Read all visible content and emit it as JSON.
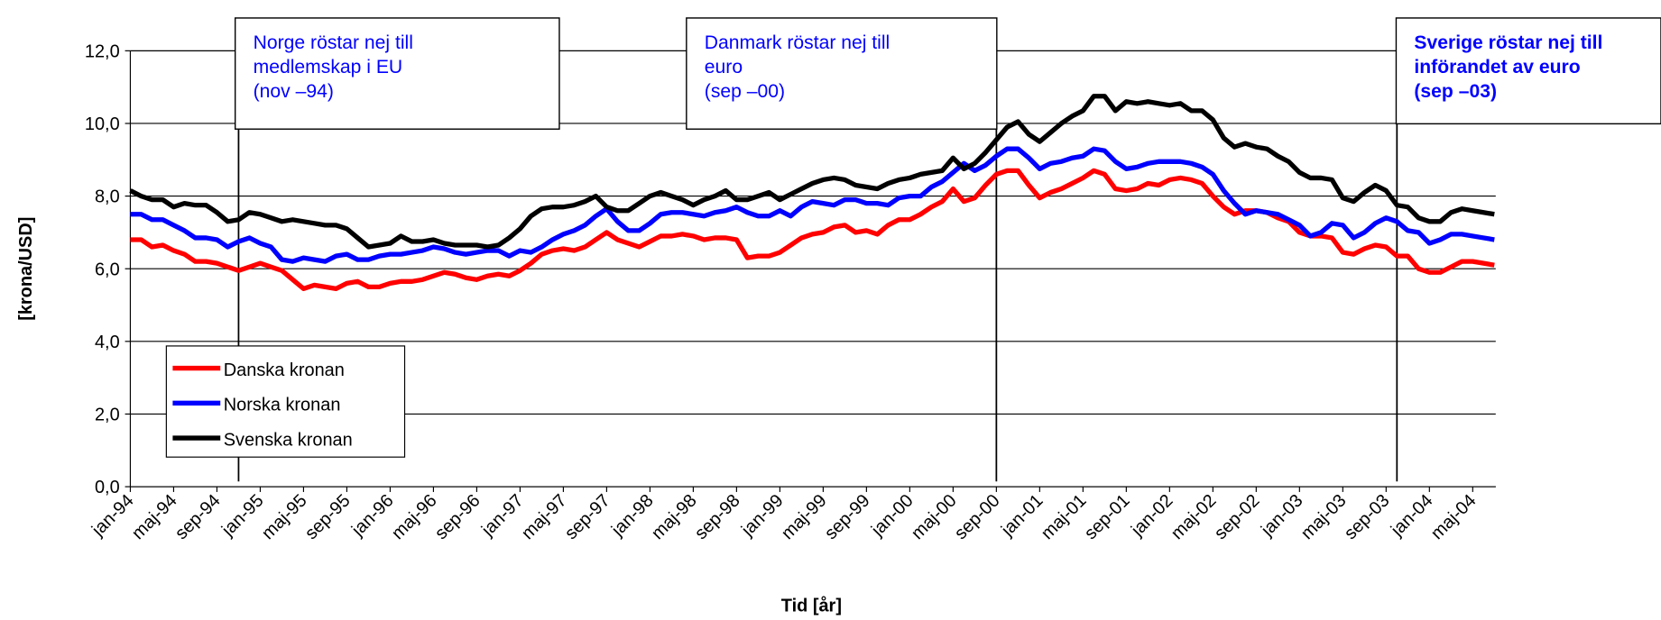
{
  "chart_data": {
    "type": "line",
    "ylabel": "[krona/USD]",
    "xlabel": "Tid [år]",
    "ylim": [
      0,
      12
    ],
    "yticks": [
      {
        "value": 0,
        "label": "0,0"
      },
      {
        "value": 2,
        "label": "2,0"
      },
      {
        "value": 4,
        "label": "4,0"
      },
      {
        "value": 6,
        "label": "6,0"
      },
      {
        "value": 8,
        "label": "8,0"
      },
      {
        "value": 10,
        "label": "10,0"
      },
      {
        "value": 12,
        "label": "12,0"
      }
    ],
    "grid": true,
    "legend": "lower left",
    "annotations": [
      {
        "lines": [
          "Norge röstar nej till",
          "medlemskap i EU",
          "(nov –94)"
        ]
      },
      {
        "lines": [
          "Danmark röstar nej till",
          "euro",
          "(sep –00)"
        ]
      },
      {
        "lines": [
          "Sverige röstar nej till",
          "införandet av euro",
          "(sep –03)"
        ]
      }
    ],
    "categories": [
      "jan-94",
      null,
      null,
      null,
      "maj-94",
      null,
      null,
      null,
      "sep-94",
      null,
      null,
      null,
      "jan-95",
      null,
      null,
      null,
      "maj-95",
      null,
      null,
      null,
      "sep-95",
      null,
      null,
      null,
      "jan-96",
      null,
      null,
      null,
      "maj-96",
      null,
      null,
      null,
      "sep-96",
      null,
      null,
      null,
      "jan-97",
      null,
      null,
      null,
      "maj-97",
      null,
      null,
      null,
      "sep-97",
      null,
      null,
      null,
      "jan-98",
      null,
      null,
      null,
      "maj-98",
      null,
      null,
      null,
      "sep-98",
      null,
      null,
      null,
      "jan-99",
      null,
      null,
      null,
      "maj-99",
      null,
      null,
      null,
      "sep-99",
      null,
      null,
      null,
      "jan-00",
      null,
      null,
      null,
      "maj-00",
      null,
      null,
      null,
      "sep-00",
      null,
      null,
      null,
      "jan-01",
      null,
      null,
      null,
      "maj-01",
      null,
      null,
      null,
      "sep-01",
      null,
      null,
      null,
      "jan-02",
      null,
      null,
      null,
      "maj-02",
      null,
      null,
      null,
      "sep-02",
      null,
      null,
      null,
      "jan-03",
      null,
      null,
      null,
      "maj-03",
      null,
      null,
      null,
      "sep-03",
      null,
      null,
      null,
      "jan-04",
      null,
      null,
      null,
      "maj-04",
      null,
      null
    ],
    "series": [
      {
        "name": "Danska kronan",
        "color": "#ff0000",
        "values": [
          6.8,
          6.8,
          6.6,
          6.65,
          6.5,
          6.4,
          6.2,
          6.2,
          6.15,
          6.05,
          5.95,
          6.05,
          6.15,
          6.05,
          5.95,
          5.7,
          5.45,
          5.55,
          5.5,
          5.45,
          5.6,
          5.65,
          5.5,
          5.5,
          5.6,
          5.65,
          5.65,
          5.7,
          5.8,
          5.9,
          5.85,
          5.75,
          5.7,
          5.8,
          5.85,
          5.8,
          5.95,
          6.15,
          6.4,
          6.5,
          6.55,
          6.5,
          6.6,
          6.8,
          7.0,
          6.8,
          6.7,
          6.6,
          6.75,
          6.9,
          6.9,
          6.95,
          6.9,
          6.8,
          6.85,
          6.85,
          6.8,
          6.3,
          6.35,
          6.35,
          6.45,
          6.65,
          6.85,
          6.95,
          7.0,
          7.15,
          7.2,
          7.0,
          7.05,
          6.95,
          7.2,
          7.35,
          7.35,
          7.5,
          7.7,
          7.85,
          8.2,
          7.85,
          7.95,
          8.3,
          8.6,
          8.7,
          8.7,
          8.3,
          7.95,
          8.1,
          8.2,
          8.35,
          8.5,
          8.7,
          8.6,
          8.2,
          8.15,
          8.2,
          8.35,
          8.3,
          8.45,
          8.5,
          8.45,
          8.35,
          8.0,
          7.7,
          7.5,
          7.6,
          7.6,
          7.55,
          7.4,
          7.3,
          7.0,
          6.9,
          6.9,
          6.85,
          6.45,
          6.4,
          6.55,
          6.65,
          6.6,
          6.35,
          6.35,
          6.0,
          5.9,
          5.9,
          6.05,
          6.2,
          6.2,
          6.15,
          6.1
        ]
      },
      {
        "name": "Norska kronan",
        "color": "#0000ff",
        "values": [
          7.5,
          7.5,
          7.35,
          7.35,
          7.2,
          7.05,
          6.85,
          6.85,
          6.8,
          6.6,
          6.75,
          6.85,
          6.7,
          6.6,
          6.25,
          6.2,
          6.3,
          6.25,
          6.2,
          6.35,
          6.4,
          6.25,
          6.25,
          6.35,
          6.4,
          6.4,
          6.45,
          6.5,
          6.6,
          6.55,
          6.45,
          6.4,
          6.45,
          6.5,
          6.5,
          6.35,
          6.5,
          6.45,
          6.6,
          6.8,
          6.95,
          7.05,
          7.2,
          7.45,
          7.65,
          7.3,
          7.05,
          7.05,
          7.25,
          7.5,
          7.55,
          7.55,
          7.5,
          7.45,
          7.55,
          7.6,
          7.7,
          7.55,
          7.45,
          7.45,
          7.6,
          7.45,
          7.7,
          7.85,
          7.8,
          7.75,
          7.9,
          7.9,
          7.8,
          7.8,
          7.75,
          7.95,
          8.0,
          8.0,
          8.25,
          8.4,
          8.65,
          8.9,
          8.7,
          8.85,
          9.1,
          9.3,
          9.3,
          9.05,
          8.75,
          8.9,
          8.95,
          9.05,
          9.1,
          9.3,
          9.25,
          8.95,
          8.75,
          8.8,
          8.9,
          8.95,
          8.95,
          8.95,
          8.9,
          8.8,
          8.6,
          8.15,
          7.8,
          7.5,
          7.6,
          7.55,
          7.5,
          7.35,
          7.2,
          6.9,
          7.0,
          7.25,
          7.2,
          6.85,
          7.0,
          7.25,
          7.4,
          7.3,
          7.05,
          7.0,
          6.7,
          6.8,
          6.95,
          6.95,
          6.9,
          6.85,
          6.8
        ]
      },
      {
        "name": "Svenska kronan",
        "color": "#000000",
        "values": [
          8.15,
          8.0,
          7.9,
          7.9,
          7.7,
          7.8,
          7.75,
          7.75,
          7.55,
          7.3,
          7.35,
          7.55,
          7.5,
          7.4,
          7.3,
          7.35,
          7.3,
          7.25,
          7.2,
          7.2,
          7.1,
          6.85,
          6.6,
          6.65,
          6.7,
          6.9,
          6.75,
          6.75,
          6.8,
          6.7,
          6.65,
          6.65,
          6.65,
          6.6,
          6.65,
          6.85,
          7.1,
          7.45,
          7.65,
          7.7,
          7.7,
          7.75,
          7.85,
          8.0,
          7.7,
          7.6,
          7.6,
          7.8,
          8.0,
          8.1,
          8.0,
          7.9,
          7.75,
          7.9,
          8.0,
          8.15,
          7.9,
          7.9,
          8.0,
          8.1,
          7.9,
          8.05,
          8.2,
          8.35,
          8.45,
          8.5,
          8.45,
          8.3,
          8.25,
          8.2,
          8.35,
          8.45,
          8.5,
          8.6,
          8.65,
          8.7,
          9.05,
          8.75,
          8.9,
          9.2,
          9.55,
          9.9,
          10.05,
          9.7,
          9.5,
          9.75,
          10.0,
          10.2,
          10.35,
          10.75,
          10.75,
          10.35,
          10.6,
          10.55,
          10.6,
          10.55,
          10.5,
          10.55,
          10.35,
          10.35,
          10.1,
          9.6,
          9.35,
          9.45,
          9.35,
          9.3,
          9.1,
          8.95,
          8.65,
          8.5,
          8.5,
          8.45,
          7.95,
          7.85,
          8.1,
          8.3,
          8.15,
          7.75,
          7.7,
          7.4,
          7.3,
          7.3,
          7.55,
          7.65,
          7.6,
          7.55,
          7.5
        ]
      }
    ]
  }
}
